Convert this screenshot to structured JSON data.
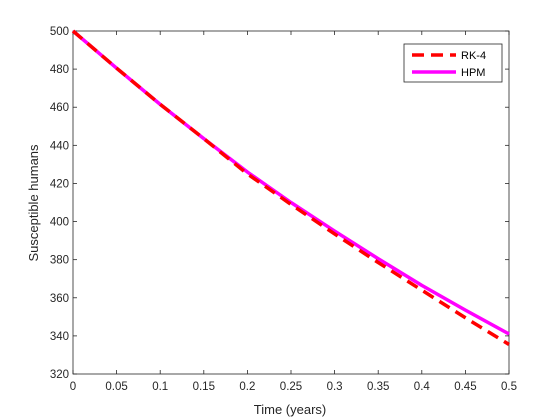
{
  "chart_data": {
    "type": "line",
    "xlabel": "Time (years)",
    "ylabel": "Susceptible humans",
    "xlim": [
      0,
      0.5
    ],
    "ylim": [
      320,
      500
    ],
    "x_ticks": [
      0,
      0.05,
      0.1,
      0.15,
      0.2,
      0.25,
      0.3,
      0.35,
      0.4,
      0.45,
      0.5
    ],
    "x_tick_labels": [
      "0",
      "0.05",
      "0.1",
      "0.15",
      "0.2",
      "0.25",
      "0.3",
      "0.35",
      "0.4",
      "0.45",
      "0.5"
    ],
    "y_ticks": [
      320,
      340,
      360,
      380,
      400,
      420,
      440,
      460,
      480,
      500
    ],
    "y_tick_labels": [
      "320",
      "340",
      "360",
      "380",
      "400",
      "420",
      "440",
      "460",
      "480",
      "500"
    ],
    "grid": false,
    "legend_position": "top-right",
    "x": [
      0,
      0.05,
      0.1,
      0.15,
      0.2,
      0.25,
      0.3,
      0.35,
      0.4,
      0.45,
      0.5
    ],
    "series": [
      {
        "name": "RK-4",
        "style": "dashed",
        "color": "#ff0000",
        "values": [
          500,
          480.5,
          461.5,
          443.5,
          425,
          409,
          393.5,
          378.5,
          364,
          349.5,
          335.5
        ]
      },
      {
        "name": "HPM",
        "style": "solid",
        "color": "#ff00ff",
        "values": [
          500,
          480.5,
          461.5,
          443.5,
          426,
          410,
          395,
          380.5,
          366.5,
          353.5,
          341
        ]
      }
    ]
  }
}
